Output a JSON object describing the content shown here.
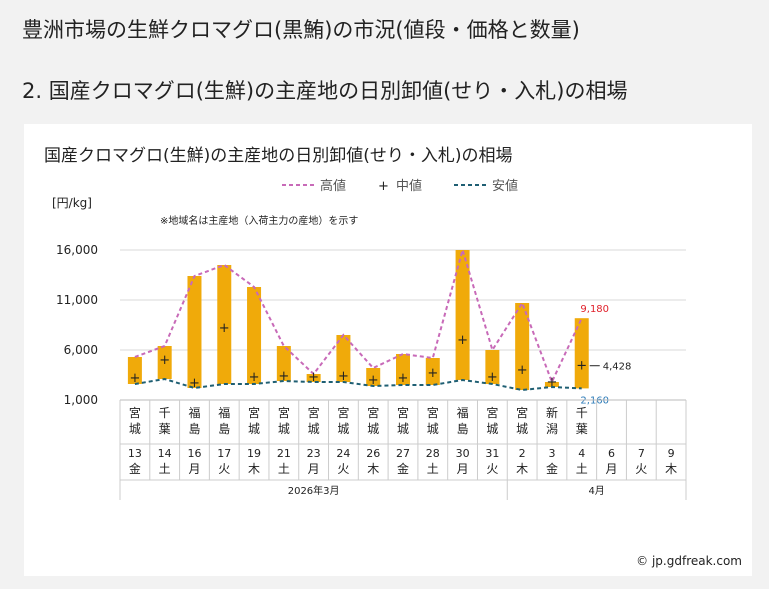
{
  "page": {
    "title": "豊洲市場の生鮮クロマグロ(黒鮪)の市況(値段・価格と数量)",
    "section": "2. 国産クロマグロ(生鮮)の主産地の日別卸値(せり・入札)の相場"
  },
  "copyright": "© jp.gdfreak.com",
  "chart_data": {
    "type": "bar",
    "title": "国産クロマグロ(生鮮)の主産地の日別卸値(せり・入札)の相場",
    "unit_label": "[円/kg]",
    "note": "※地域名は主産地（入荷主力の産地）を示す",
    "legend": {
      "placement": "top-center",
      "entries": [
        {
          "name": "高値",
          "style": "dashed",
          "color": "#c86ab8"
        },
        {
          "name": "中値",
          "style": "marker",
          "marker": "+"
        },
        {
          "name": "安値",
          "style": "dashed",
          "color": "#1f5f73"
        }
      ]
    },
    "colors": {
      "bar": "#f0aa0a",
      "high": "#c86ab8",
      "low": "#1f5f73"
    },
    "ylim": [
      1000,
      16000
    ],
    "yticks": [
      {
        "value": 1000,
        "label": "1,000"
      },
      {
        "value": 6000,
        "label": "6,000"
      },
      {
        "value": 11000,
        "label": "11,000"
      },
      {
        "value": 16000,
        "label": "16,000"
      }
    ],
    "categories": [
      {
        "origin": "宮城",
        "day": "13",
        "weekday": "金"
      },
      {
        "origin": "千葉",
        "day": "14",
        "weekday": "土"
      },
      {
        "origin": "福島",
        "day": "16",
        "weekday": "月"
      },
      {
        "origin": "福島",
        "day": "17",
        "weekday": "火"
      },
      {
        "origin": "宮城",
        "day": "19",
        "weekday": "木"
      },
      {
        "origin": "宮城",
        "day": "21",
        "weekday": "土"
      },
      {
        "origin": "宮城",
        "day": "23",
        "weekday": "月"
      },
      {
        "origin": "宮城",
        "day": "24",
        "weekday": "火"
      },
      {
        "origin": "宮城",
        "day": "26",
        "weekday": "木"
      },
      {
        "origin": "宮城",
        "day": "27",
        "weekday": "金"
      },
      {
        "origin": "宮城",
        "day": "28",
        "weekday": "土"
      },
      {
        "origin": "福島",
        "day": "30",
        "weekday": "月"
      },
      {
        "origin": "宮城",
        "day": "31",
        "weekday": "火"
      },
      {
        "origin": "宮城",
        "day": "2",
        "weekday": "木"
      },
      {
        "origin": "新潟",
        "day": "3",
        "weekday": "金"
      },
      {
        "origin": "千葉",
        "day": "4",
        "weekday": "土"
      },
      {
        "origin": "",
        "day": "6",
        "weekday": "月"
      },
      {
        "origin": "",
        "day": "7",
        "weekday": "火"
      },
      {
        "origin": "",
        "day": "9",
        "weekday": "木"
      }
    ],
    "months": [
      {
        "label": "2026年3月",
        "from": 0,
        "to": 12
      },
      {
        "label": "4月",
        "from": 13,
        "to": 18
      }
    ],
    "series": [
      {
        "name": "高値",
        "values": [
          5300,
          6400,
          13400,
          14500,
          12300,
          6400,
          3600,
          7500,
          4200,
          5600,
          5200,
          16000,
          6000,
          10700,
          2800,
          9180,
          null,
          null,
          null
        ]
      },
      {
        "name": "中値",
        "values": [
          3200,
          5000,
          2700,
          8200,
          3300,
          3400,
          3300,
          3400,
          3000,
          3200,
          3700,
          7000,
          3300,
          4000,
          2800,
          4428,
          null,
          null,
          null
        ]
      },
      {
        "name": "安値",
        "values": [
          2600,
          3100,
          2200,
          2600,
          2600,
          2900,
          2800,
          2800,
          2400,
          2500,
          2500,
          3000,
          2600,
          2000,
          2300,
          2160,
          null,
          null,
          null
        ]
      }
    ],
    "annotations": [
      {
        "category": 15,
        "series": "高値",
        "text": "9,180",
        "color": "#e0202a"
      },
      {
        "category": 15,
        "series": "中値",
        "text": "4,428",
        "color": "#222222"
      },
      {
        "category": 15,
        "series": "安値",
        "text": "2,160",
        "color": "#2a7ab8"
      }
    ]
  }
}
